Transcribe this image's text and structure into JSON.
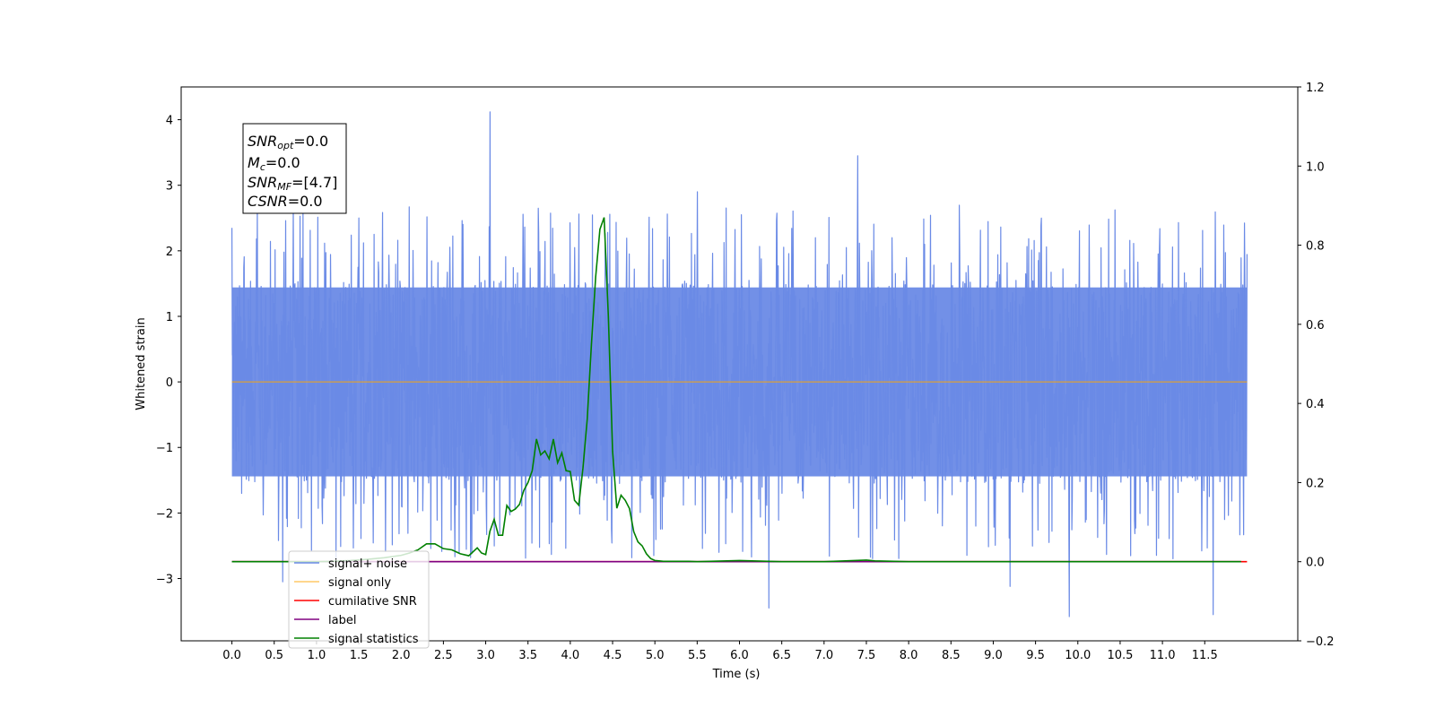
{
  "chart_data": {
    "type": "line",
    "title": "",
    "xlabel": "Time (s)",
    "ylabel": "Whitened strain",
    "ylabel_right": "",
    "xlim": [
      -0.6,
      12.6
    ],
    "ylim": [
      -3.95,
      4.5
    ],
    "ylim_right": [
      -0.2,
      1.2
    ],
    "x_ticks": [
      0.0,
      0.5,
      1.0,
      1.5,
      2.0,
      2.5,
      3.0,
      3.5,
      4.0,
      4.5,
      5.0,
      5.5,
      6.0,
      6.5,
      7.0,
      7.5,
      8.0,
      8.5,
      9.0,
      9.5,
      10.0,
      10.5,
      11.0,
      11.5
    ],
    "x_tick_labels": [
      "0.0",
      "0.5",
      "1.0",
      "1.5",
      "2.0",
      "2.5",
      "3.0",
      "3.5",
      "4.0",
      "4.5",
      "5.0",
      "5.5",
      "6.0",
      "6.5",
      "7.0",
      "7.5",
      "8.0",
      "8.5",
      "9.0",
      "9.5",
      "10.0",
      "10.5",
      "11.0",
      "11.5"
    ],
    "y_ticks": [
      -3,
      -2,
      -1,
      0,
      1,
      2,
      3,
      4
    ],
    "y_tick_labels": [
      "−3",
      "−2",
      "−1",
      "0",
      "1",
      "2",
      "3",
      "4"
    ],
    "y_ticks_right": [
      -0.2,
      0.0,
      0.2,
      0.4,
      0.6,
      0.8,
      1.0,
      1.2
    ],
    "y_tick_labels_right": [
      "−0.2",
      "0.0",
      "0.2",
      "0.4",
      "0.6",
      "0.8",
      "1.0",
      "1.2"
    ],
    "grid": false,
    "legend_position": "lower-left",
    "noise": {
      "x_start": 0.0,
      "x_end": 12.0,
      "band_low": -1.55,
      "band_high": 1.55,
      "peak_max": 4.12,
      "peak_min": -3.58
    },
    "series": [
      {
        "name": "signal+ noise",
        "color": "#6a8ae6",
        "axis": "left",
        "style": "whitened-noise",
        "x": [
          0.0,
          0.3,
          0.6,
          1.5,
          3.05,
          5.5,
          6.35,
          7.4,
          9.2,
          9.9,
          11.6,
          12.0
        ],
        "y": [
          2.35,
          2.65,
          -3.05,
          2.5,
          4.12,
          2.9,
          -3.45,
          3.45,
          -3.12,
          -3.58,
          -3.55,
          1.95
        ]
      },
      {
        "name": "signal only",
        "color": "#ffa500",
        "axis": "left",
        "x": [
          0.0,
          12.0
        ],
        "y": [
          0.0,
          0.0
        ]
      },
      {
        "name": "cumilative SNR",
        "color": "#ff0000",
        "axis": "right",
        "x": [
          0.0,
          12.0
        ],
        "y": [
          0.0,
          0.0
        ]
      },
      {
        "name": "label",
        "color": "#800080",
        "axis": "right",
        "x": [
          0.0,
          11.93
        ],
        "y": [
          0.0,
          0.0
        ]
      },
      {
        "name": "signal statistics",
        "color": "#008000",
        "axis": "right",
        "x": [
          0.0,
          0.5,
          1.0,
          1.2,
          1.4,
          1.6,
          1.8,
          2.0,
          2.1,
          2.2,
          2.3,
          2.4,
          2.5,
          2.6,
          2.7,
          2.8,
          2.9,
          2.95,
          3.0,
          3.05,
          3.1,
          3.15,
          3.2,
          3.25,
          3.3,
          3.35,
          3.4,
          3.45,
          3.5,
          3.55,
          3.6,
          3.65,
          3.7,
          3.75,
          3.8,
          3.85,
          3.9,
          3.95,
          4.0,
          4.05,
          4.1,
          4.15,
          4.2,
          4.25,
          4.3,
          4.35,
          4.4,
          4.45,
          4.5,
          4.55,
          4.6,
          4.65,
          4.7,
          4.75,
          4.8,
          4.85,
          4.9,
          4.95,
          5.0,
          5.05,
          5.1,
          5.2,
          5.3,
          5.4,
          5.5,
          6.0,
          6.5,
          6.8,
          7.0,
          7.5,
          7.6,
          8.0,
          9.0,
          10.0,
          11.0,
          11.93
        ],
        "y": [
          0.0,
          0.0,
          0.0,
          0.001,
          0.003,
          0.006,
          0.01,
          0.016,
          0.022,
          0.03,
          0.045,
          0.045,
          0.033,
          0.03,
          0.02,
          0.015,
          0.035,
          0.022,
          0.018,
          0.077,
          0.107,
          0.067,
          0.067,
          0.142,
          0.127,
          0.133,
          0.145,
          0.18,
          0.2,
          0.23,
          0.31,
          0.27,
          0.28,
          0.26,
          0.31,
          0.25,
          0.275,
          0.23,
          0.228,
          0.155,
          0.143,
          0.237,
          0.36,
          0.55,
          0.72,
          0.84,
          0.87,
          0.62,
          0.28,
          0.135,
          0.168,
          0.155,
          0.134,
          0.076,
          0.05,
          0.04,
          0.02,
          0.008,
          0.003,
          0.002,
          0.001,
          0.001,
          0.001,
          0.001,
          0.0,
          0.003,
          0.0,
          0.0,
          0.0,
          0.004,
          0.002,
          0.0,
          0.0,
          0.0,
          0.0,
          0.0
        ]
      }
    ],
    "annotation": {
      "lines": [
        {
          "main": "SNR",
          "sub": "opt",
          "rest": "=0.0"
        },
        {
          "main": "M",
          "sub": "c",
          "rest": "=0.0"
        },
        {
          "main": "SNR",
          "sub": "MF",
          "rest": "=[4.7]"
        },
        {
          "main": "CSNR",
          "sub": "",
          "rest": "=0.0"
        }
      ]
    }
  }
}
